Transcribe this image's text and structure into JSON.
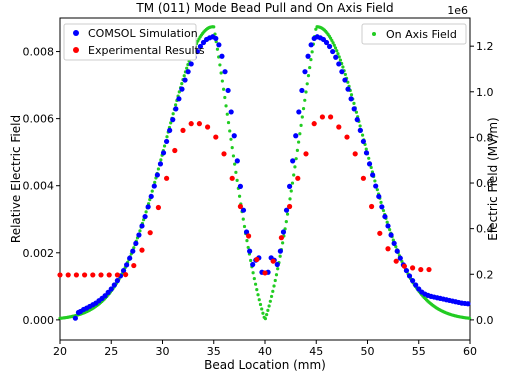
{
  "chart_data": {
    "type": "scatter",
    "title": "TM (011) Mode Bead Pull and On Axis Field",
    "xlabel": "Bead Location (mm)",
    "ylabel_left": "Relative Electric Field",
    "ylabel_right": "Electric Field (MV/m)",
    "right_offset_label": "1e6",
    "xlim": [
      20,
      60
    ],
    "ylim_left": [
      -0.0006,
      0.009
    ],
    "ylim_right": [
      -0.0882,
      1.3235
    ],
    "x_ticks": [
      "20",
      "25",
      "30",
      "35",
      "40",
      "45",
      "50",
      "55",
      "60"
    ],
    "y_ticks_left": [
      "0.000",
      "0.002",
      "0.004",
      "0.006",
      "0.008"
    ],
    "y_ticks_right": [
      "0.0",
      "0.2",
      "0.4",
      "0.6",
      "0.8",
      "1.0",
      "1.2"
    ],
    "legend_left": "top-left",
    "legend_right": "top-right",
    "series": [
      {
        "name": "COMSOL Simulation",
        "axis": "left",
        "color": "#0000ff",
        "points": [
          [
            21.5,
            5e-05
          ],
          [
            21.8,
            0.00022
          ],
          [
            22.0,
            0.00025
          ],
          [
            22.3,
            0.00031
          ],
          [
            22.6,
            0.00035
          ],
          [
            22.9,
            0.0004
          ],
          [
            23.2,
            0.00045
          ],
          [
            23.5,
            0.0005
          ],
          [
            23.8,
            0.00057
          ],
          [
            24.1,
            0.00064
          ],
          [
            24.4,
            0.00072
          ],
          [
            24.7,
            0.00082
          ],
          [
            25.0,
            0.00092
          ],
          [
            25.3,
            0.00104
          ],
          [
            25.6,
            0.00117
          ],
          [
            25.9,
            0.00131
          ],
          [
            26.2,
            0.00147
          ],
          [
            26.5,
            0.00164
          ],
          [
            26.8,
            0.00184
          ],
          [
            27.1,
            0.00205
          ],
          [
            27.4,
            0.00228
          ],
          [
            27.7,
            0.00253
          ],
          [
            28.0,
            0.0028
          ],
          [
            28.3,
            0.00308
          ],
          [
            28.6,
            0.00337
          ],
          [
            28.9,
            0.00368
          ],
          [
            29.2,
            0.00399
          ],
          [
            29.5,
            0.00432
          ],
          [
            29.8,
            0.00465
          ],
          [
            30.1,
            0.00498
          ],
          [
            30.4,
            0.00532
          ],
          [
            30.7,
            0.00565
          ],
          [
            31.0,
            0.00597
          ],
          [
            31.3,
            0.00629
          ],
          [
            31.6,
            0.00659
          ],
          [
            31.9,
            0.00688
          ],
          [
            32.2,
            0.00715
          ],
          [
            32.5,
            0.0074
          ],
          [
            32.8,
            0.00763
          ],
          [
            33.1,
            0.00783
          ],
          [
            33.4,
            0.008
          ],
          [
            33.7,
            0.00815
          ],
          [
            34.0,
            0.00827
          ],
          [
            34.3,
            0.00836
          ],
          [
            34.6,
            0.00841
          ],
          [
            34.9,
            0.00844
          ],
          [
            35.2,
            0.00839
          ],
          [
            35.5,
            0.0082
          ],
          [
            35.8,
            0.00786
          ],
          [
            36.1,
            0.0074
          ],
          [
            36.4,
            0.00684
          ],
          [
            36.7,
            0.0062
          ],
          [
            37.0,
            0.00549
          ],
          [
            37.3,
            0.00474
          ],
          [
            37.6,
            0.00398
          ],
          [
            37.9,
            0.00327
          ],
          [
            38.2,
            0.00262
          ],
          [
            38.5,
            0.00205
          ],
          [
            38.8,
            0.00165
          ],
          [
            39.1,
            0.00178
          ],
          [
            39.4,
            0.00185
          ],
          [
            39.7,
            0.00142
          ],
          [
            40.3,
            0.00142
          ],
          [
            40.6,
            0.00185
          ],
          [
            40.9,
            0.00178
          ],
          [
            41.2,
            0.00165
          ],
          [
            41.5,
            0.00205
          ],
          [
            41.8,
            0.00262
          ],
          [
            42.1,
            0.00327
          ],
          [
            42.4,
            0.00398
          ],
          [
            42.7,
            0.00474
          ],
          [
            43.0,
            0.00549
          ],
          [
            43.3,
            0.0062
          ],
          [
            43.6,
            0.00684
          ],
          [
            43.9,
            0.0074
          ],
          [
            44.2,
            0.00786
          ],
          [
            44.5,
            0.0082
          ],
          [
            44.8,
            0.00839
          ],
          [
            45.1,
            0.00844
          ],
          [
            45.4,
            0.00841
          ],
          [
            45.7,
            0.00836
          ],
          [
            46.0,
            0.00827
          ],
          [
            46.3,
            0.00815
          ],
          [
            46.6,
            0.008
          ],
          [
            46.9,
            0.00783
          ],
          [
            47.2,
            0.00763
          ],
          [
            47.5,
            0.0074
          ],
          [
            47.8,
            0.00715
          ],
          [
            48.1,
            0.00688
          ],
          [
            48.4,
            0.00659
          ],
          [
            48.7,
            0.00629
          ],
          [
            49.0,
            0.00597
          ],
          [
            49.3,
            0.00565
          ],
          [
            49.6,
            0.00532
          ],
          [
            49.9,
            0.00498
          ],
          [
            50.2,
            0.00465
          ],
          [
            50.5,
            0.00432
          ],
          [
            50.8,
            0.00399
          ],
          [
            51.1,
            0.00368
          ],
          [
            51.4,
            0.00337
          ],
          [
            51.7,
            0.00308
          ],
          [
            52.0,
            0.0028
          ],
          [
            52.3,
            0.00253
          ],
          [
            52.6,
            0.00228
          ],
          [
            52.9,
            0.00205
          ],
          [
            53.2,
            0.00184
          ],
          [
            53.5,
            0.00164
          ],
          [
            53.8,
            0.00147
          ],
          [
            54.1,
            0.00131
          ],
          [
            54.4,
            0.00117
          ],
          [
            54.7,
            0.00104
          ],
          [
            55.0,
            0.00092
          ],
          [
            55.3,
            0.00083
          ],
          [
            55.6,
            0.00077
          ],
          [
            55.9,
            0.00073
          ],
          [
            56.2,
            0.0007
          ],
          [
            56.5,
            0.00068
          ],
          [
            56.8,
            0.00066
          ],
          [
            57.1,
            0.00064
          ],
          [
            57.4,
            0.00062
          ],
          [
            57.7,
            0.0006
          ],
          [
            58.0,
            0.00058
          ],
          [
            58.3,
            0.00056
          ],
          [
            58.6,
            0.00054
          ],
          [
            58.9,
            0.00052
          ],
          [
            59.2,
            0.0005
          ],
          [
            59.5,
            0.00049
          ],
          [
            59.8,
            0.00048
          ]
        ]
      },
      {
        "name": "Experimental Results",
        "axis": "left",
        "color": "#ff0000",
        "points": [
          [
            20.0,
            0.00134
          ],
          [
            20.8,
            0.00134
          ],
          [
            21.6,
            0.00134
          ],
          [
            22.4,
            0.00134
          ],
          [
            23.2,
            0.00134
          ],
          [
            24.0,
            0.00134
          ],
          [
            24.8,
            0.00134
          ],
          [
            25.6,
            0.00134
          ],
          [
            26.4,
            0.00135
          ],
          [
            27.2,
            0.00162
          ],
          [
            28.0,
            0.00208
          ],
          [
            28.8,
            0.0026
          ],
          [
            29.6,
            0.00335
          ],
          [
            30.4,
            0.00422
          ],
          [
            31.2,
            0.00505
          ],
          [
            32.0,
            0.00565
          ],
          [
            32.8,
            0.00585
          ],
          [
            33.6,
            0.00585
          ],
          [
            34.4,
            0.00575
          ],
          [
            35.2,
            0.00545
          ],
          [
            36.0,
            0.00495
          ],
          [
            36.8,
            0.00422
          ],
          [
            37.6,
            0.00338
          ],
          [
            38.4,
            0.0025
          ],
          [
            39.2,
            0.0018
          ],
          [
            40.0,
            0.0014
          ],
          [
            40.8,
            0.00175
          ],
          [
            41.6,
            0.00245
          ],
          [
            42.4,
            0.00338
          ],
          [
            43.2,
            0.00422
          ],
          [
            44.0,
            0.00495
          ],
          [
            44.8,
            0.00585
          ],
          [
            45.6,
            0.00605
          ],
          [
            46.4,
            0.00605
          ],
          [
            47.2,
            0.00575
          ],
          [
            48.0,
            0.00545
          ],
          [
            48.8,
            0.00495
          ],
          [
            49.6,
            0.00422
          ],
          [
            50.4,
            0.00338
          ],
          [
            51.2,
            0.00258
          ],
          [
            52.0,
            0.00212
          ],
          [
            52.8,
            0.00175
          ],
          [
            53.6,
            0.0016
          ],
          [
            54.4,
            0.00155
          ],
          [
            55.2,
            0.0015
          ],
          [
            56.0,
            0.0015
          ]
        ]
      },
      {
        "name": "On Axis Field",
        "axis": "right",
        "color": "#22cc22",
        "peaks": [
          {
            "center": 34.9,
            "amplitude": 1.285,
            "width": 4.6
          },
          {
            "center": 45.1,
            "amplitude": 1.285,
            "width": 4.6
          }
        ],
        "dip": {
          "x": 40.0,
          "value": 0.0
        }
      }
    ]
  }
}
